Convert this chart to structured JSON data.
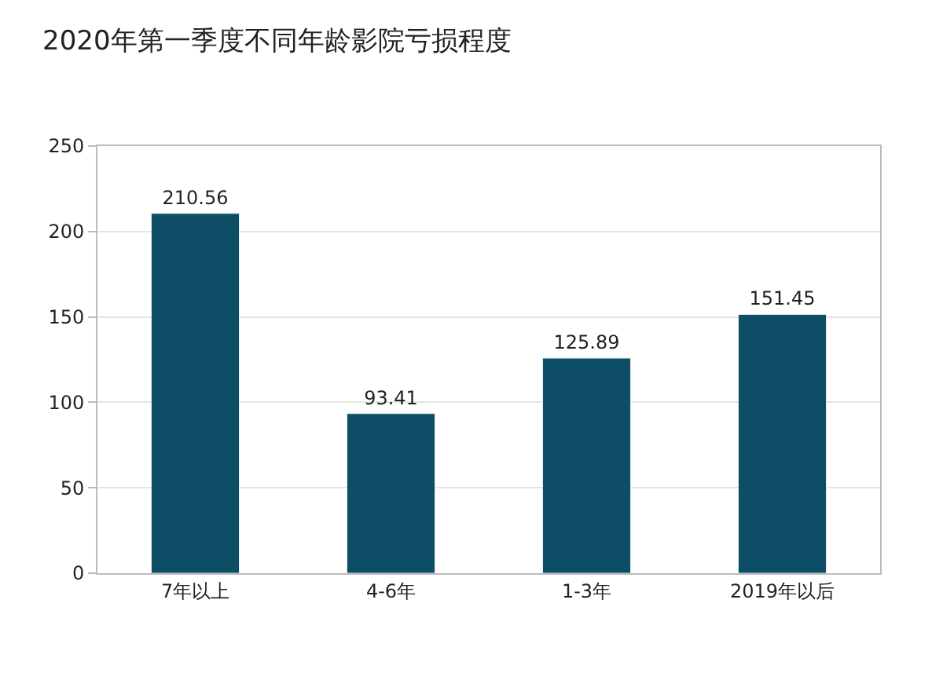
{
  "chart_data": {
    "type": "bar",
    "title": "2020年第一季度不同年龄影院亏损程度",
    "categories": [
      "7年以上",
      "4-6年",
      "1-3年",
      "2019年以后"
    ],
    "values": [
      210.56,
      93.41,
      125.89,
      151.45
    ],
    "color": "#0d4e66",
    "ylim": [
      0,
      250
    ],
    "yticks": [
      0,
      50,
      100,
      150,
      200,
      250
    ],
    "grid": "y",
    "data_labels": true
  }
}
